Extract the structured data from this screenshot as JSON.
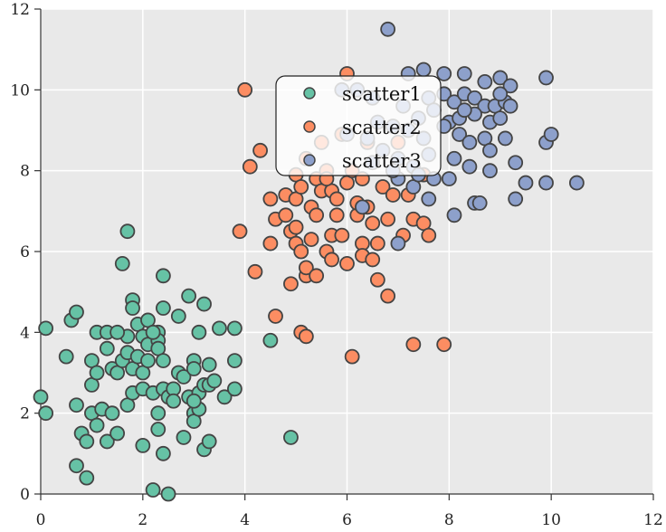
{
  "chart_data": {
    "type": "scatter",
    "title": "",
    "xlabel": "",
    "ylabel": "",
    "xlim": [
      0,
      12
    ],
    "ylim": [
      0,
      12
    ],
    "xticks": [
      "0",
      "2",
      "4",
      "6",
      "8",
      "10",
      "12"
    ],
    "yticks": [
      "0",
      "2",
      "4",
      "6",
      "8",
      "10",
      "12"
    ],
    "grid": true,
    "legend_position": "upper-center",
    "background": "#e9e9e9",
    "series": [
      {
        "name": "scatter1",
        "color": "#66c2a5",
        "points": [
          [
            0.1,
            4.1
          ],
          [
            0.1,
            2.0
          ],
          [
            0.0,
            2.4
          ],
          [
            0.5,
            3.4
          ],
          [
            0.6,
            4.3
          ],
          [
            0.7,
            4.5
          ],
          [
            0.7,
            2.2
          ],
          [
            0.7,
            0.7
          ],
          [
            0.8,
            1.5
          ],
          [
            0.9,
            1.3
          ],
          [
            0.9,
            0.4
          ],
          [
            1.0,
            3.3
          ],
          [
            1.0,
            2.7
          ],
          [
            1.0,
            2.0
          ],
          [
            1.1,
            4.0
          ],
          [
            1.1,
            3.0
          ],
          [
            1.1,
            1.7
          ],
          [
            1.2,
            2.1
          ],
          [
            1.3,
            1.3
          ],
          [
            1.3,
            3.6
          ],
          [
            1.3,
            4.0
          ],
          [
            1.4,
            3.1
          ],
          [
            1.4,
            2.0
          ],
          [
            1.5,
            1.5
          ],
          [
            1.5,
            3.0
          ],
          [
            1.6,
            5.7
          ],
          [
            1.6,
            3.3
          ],
          [
            1.7,
            6.5
          ],
          [
            1.7,
            3.5
          ],
          [
            1.7,
            2.2
          ],
          [
            1.7,
            3.9
          ],
          [
            1.8,
            4.8
          ],
          [
            1.8,
            4.6
          ],
          [
            1.8,
            3.1
          ],
          [
            1.8,
            2.5
          ],
          [
            1.9,
            4.2
          ],
          [
            1.9,
            3.4
          ],
          [
            2.0,
            3.9
          ],
          [
            2.0,
            3.0
          ],
          [
            2.0,
            1.2
          ],
          [
            2.0,
            2.6
          ],
          [
            2.1,
            4.3
          ],
          [
            2.1,
            3.7
          ],
          [
            2.1,
            3.3
          ],
          [
            2.2,
            2.5
          ],
          [
            2.2,
            0.1
          ],
          [
            2.3,
            2.0
          ],
          [
            2.3,
            4.0
          ],
          [
            2.3,
            3.8
          ],
          [
            2.3,
            3.6
          ],
          [
            2.3,
            1.6
          ],
          [
            2.4,
            5.4
          ],
          [
            2.4,
            4.6
          ],
          [
            2.4,
            3.3
          ],
          [
            2.4,
            2.6
          ],
          [
            2.4,
            1.0
          ],
          [
            2.5,
            2.4
          ],
          [
            2.5,
            0.0
          ],
          [
            2.6,
            2.6
          ],
          [
            2.6,
            2.3
          ],
          [
            2.7,
            3.0
          ],
          [
            2.7,
            4.4
          ],
          [
            2.8,
            1.4
          ],
          [
            2.8,
            2.9
          ],
          [
            2.9,
            2.4
          ],
          [
            2.9,
            4.9
          ],
          [
            3.0,
            3.3
          ],
          [
            3.0,
            2.0
          ],
          [
            3.0,
            1.8
          ],
          [
            3.0,
            3.1
          ],
          [
            3.1,
            2.5
          ],
          [
            3.1,
            2.1
          ],
          [
            3.1,
            4.0
          ],
          [
            3.2,
            1.1
          ],
          [
            3.2,
            2.7
          ],
          [
            3.2,
            4.7
          ],
          [
            3.3,
            3.2
          ],
          [
            3.3,
            2.7
          ],
          [
            3.3,
            1.3
          ],
          [
            3.4,
            2.8
          ],
          [
            3.5,
            4.1
          ],
          [
            3.6,
            2.4
          ],
          [
            3.8,
            2.6
          ],
          [
            3.8,
            3.3
          ],
          [
            3.8,
            4.1
          ],
          [
            4.5,
            3.8
          ],
          [
            4.9,
            1.4
          ],
          [
            2.2,
            4.0
          ],
          [
            1.5,
            4.0
          ],
          [
            3.0,
            2.3
          ]
        ]
      },
      {
        "name": "scatter2",
        "color": "#fc8d62",
        "points": [
          [
            3.9,
            6.5
          ],
          [
            4.1,
            8.1
          ],
          [
            4.2,
            5.5
          ],
          [
            4.3,
            8.5
          ],
          [
            4.5,
            7.3
          ],
          [
            4.5,
            6.2
          ],
          [
            4.6,
            6.8
          ],
          [
            4.6,
            4.4
          ],
          [
            4.8,
            7.4
          ],
          [
            4.8,
            6.9
          ],
          [
            4.9,
            6.5
          ],
          [
            4.9,
            5.2
          ],
          [
            5.0,
            7.9
          ],
          [
            5.0,
            7.3
          ],
          [
            5.0,
            6.6
          ],
          [
            5.0,
            6.2
          ],
          [
            5.1,
            7.6
          ],
          [
            5.1,
            6.0
          ],
          [
            5.1,
            4.0
          ],
          [
            5.2,
            5.4
          ],
          [
            5.2,
            5.6
          ],
          [
            5.2,
            8.3
          ],
          [
            5.3,
            7.1
          ],
          [
            5.3,
            6.3
          ],
          [
            5.4,
            6.9
          ],
          [
            5.4,
            7.8
          ],
          [
            5.4,
            5.4
          ],
          [
            5.5,
            7.5
          ],
          [
            5.5,
            8.7
          ],
          [
            5.6,
            6.0
          ],
          [
            5.6,
            8.0
          ],
          [
            5.7,
            5.8
          ],
          [
            5.7,
            6.4
          ],
          [
            5.7,
            7.5
          ],
          [
            5.8,
            6.9
          ],
          [
            5.8,
            7.3
          ],
          [
            5.9,
            8.9
          ],
          [
            5.9,
            6.4
          ],
          [
            6.0,
            5.7
          ],
          [
            6.0,
            7.7
          ],
          [
            6.1,
            8.0
          ],
          [
            6.1,
            3.4
          ],
          [
            6.2,
            6.9
          ],
          [
            6.2,
            7.2
          ],
          [
            6.3,
            6.2
          ],
          [
            6.3,
            5.9
          ],
          [
            6.4,
            7.1
          ],
          [
            6.4,
            8.7
          ],
          [
            6.5,
            6.7
          ],
          [
            6.5,
            5.8
          ],
          [
            6.6,
            6.2
          ],
          [
            6.6,
            5.3
          ],
          [
            6.7,
            7.6
          ],
          [
            6.8,
            4.9
          ],
          [
            6.8,
            6.8
          ],
          [
            6.9,
            7.4
          ],
          [
            7.0,
            8.7
          ],
          [
            7.1,
            6.4
          ],
          [
            7.2,
            7.4
          ],
          [
            7.3,
            6.8
          ],
          [
            7.3,
            3.7
          ],
          [
            7.5,
            7.9
          ],
          [
            7.5,
            6.7
          ],
          [
            7.6,
            6.4
          ],
          [
            7.9,
            3.7
          ],
          [
            6.0,
            10.4
          ],
          [
            4.0,
            10.0
          ],
          [
            5.2,
            3.9
          ],
          [
            5.6,
            7.8
          ],
          [
            6.3,
            7.8
          ]
        ]
      },
      {
        "name": "scatter3",
        "color": "#8da0cb",
        "points": [
          [
            6.8,
            11.5
          ],
          [
            7.2,
            10.4
          ],
          [
            7.5,
            10.5
          ],
          [
            7.9,
            10.4
          ],
          [
            8.3,
            10.4
          ],
          [
            8.7,
            10.2
          ],
          [
            9.0,
            10.3
          ],
          [
            9.2,
            10.1
          ],
          [
            9.9,
            10.3
          ],
          [
            7.6,
            9.8
          ],
          [
            7.9,
            9.9
          ],
          [
            8.1,
            9.7
          ],
          [
            8.3,
            9.9
          ],
          [
            8.5,
            9.8
          ],
          [
            8.7,
            9.6
          ],
          [
            8.9,
            9.6
          ],
          [
            9.1,
            9.7
          ],
          [
            7.1,
            9.6
          ],
          [
            7.4,
            9.3
          ],
          [
            7.7,
            9.5
          ],
          [
            8.0,
            9.2
          ],
          [
            8.2,
            9.3
          ],
          [
            8.5,
            9.4
          ],
          [
            8.8,
            9.2
          ],
          [
            9.0,
            9.3
          ],
          [
            6.6,
            9.2
          ],
          [
            6.9,
            9.1
          ],
          [
            7.2,
            9.0
          ],
          [
            7.5,
            8.8
          ],
          [
            7.9,
            9.1
          ],
          [
            8.2,
            8.9
          ],
          [
            8.4,
            8.7
          ],
          [
            8.7,
            8.8
          ],
          [
            9.1,
            8.8
          ],
          [
            6.4,
            8.8
          ],
          [
            6.7,
            8.5
          ],
          [
            7.0,
            8.3
          ],
          [
            7.3,
            8.1
          ],
          [
            7.6,
            8.4
          ],
          [
            8.1,
            8.3
          ],
          [
            8.4,
            8.1
          ],
          [
            8.8,
            8.0
          ],
          [
            9.3,
            8.2
          ],
          [
            9.5,
            7.7
          ],
          [
            9.9,
            8.7
          ],
          [
            10.0,
            8.9
          ],
          [
            7.0,
            7.8
          ],
          [
            7.3,
            7.6
          ],
          [
            7.7,
            7.8
          ],
          [
            8.0,
            7.8
          ],
          [
            8.5,
            7.2
          ],
          [
            8.6,
            7.2
          ],
          [
            9.3,
            7.3
          ],
          [
            9.9,
            7.7
          ],
          [
            10.5,
            7.7
          ],
          [
            7.6,
            7.3
          ],
          [
            8.1,
            6.9
          ],
          [
            7.0,
            6.2
          ],
          [
            6.3,
            7.1
          ],
          [
            5.9,
            10.0
          ],
          [
            6.2,
            10.0
          ],
          [
            6.5,
            9.8
          ],
          [
            8.3,
            9.5
          ],
          [
            9.2,
            9.6
          ],
          [
            6.0,
            8.9
          ],
          [
            6.5,
            8.2
          ],
          [
            6.9,
            8.0
          ],
          [
            7.4,
            7.9
          ],
          [
            8.8,
            8.5
          ],
          [
            9.0,
            9.9
          ]
        ]
      }
    ]
  }
}
